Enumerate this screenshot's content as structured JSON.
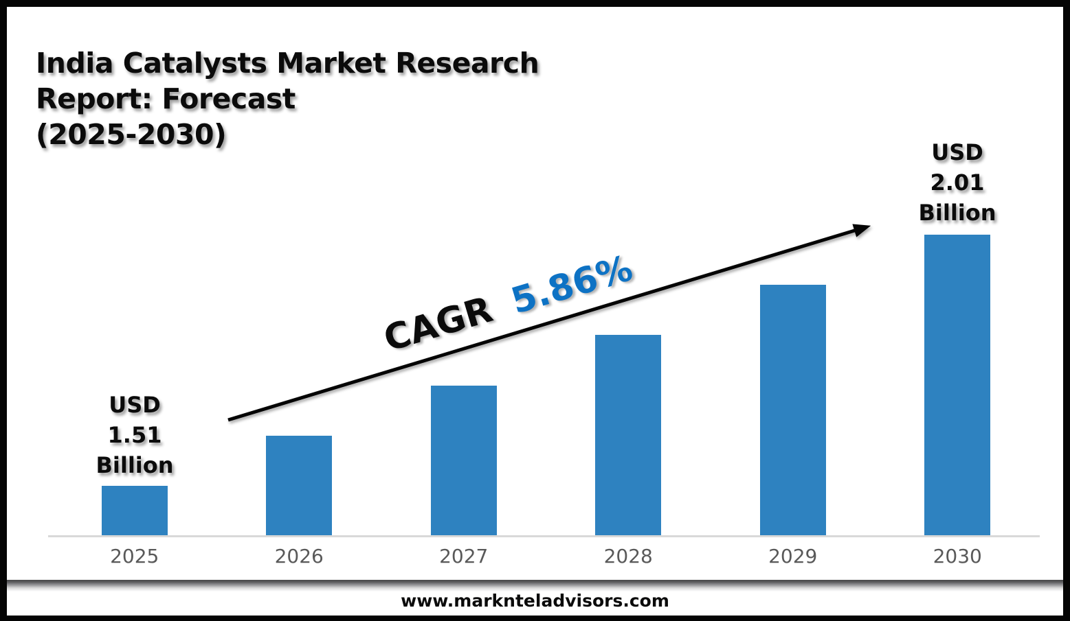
{
  "title": {
    "lines": [
      "India Catalysts Market Research",
      "Report: Forecast",
      "(2025-2030)"
    ]
  },
  "chart_data": {
    "type": "bar",
    "title": "India Catalysts Market Research Report: Forecast (2025-2030)",
    "categories": [
      "2025",
      "2026",
      "2027",
      "2028",
      "2029",
      "2030"
    ],
    "values": [
      1.51,
      1.61,
      1.71,
      1.81,
      1.91,
      2.01
    ],
    "unit": "USD Billion",
    "labeled_values": {
      "2025": "USD 1.51 Billion",
      "2030": "USD 2.01 Billion"
    },
    "cagr": {
      "label": "CAGR",
      "value": "5.86%"
    },
    "annotations": [
      {
        "category": "2025",
        "text": "USD\n1.51\nBillion"
      },
      {
        "category": "2030",
        "text": "USD\n2.01\nBillion"
      }
    ],
    "xlabel": "",
    "ylabel": "",
    "y_axis": {
      "min": 1.41,
      "max": 2.01,
      "visible": false
    },
    "grid": false,
    "legend": false,
    "trend_arrow": true
  },
  "footer": {
    "website": "www.marknteladvisors.com"
  },
  "colors": {
    "bar": "#2E82C0",
    "cagr_value": "#0D72C4",
    "cagr_label": "#0B0B0B",
    "year_label": "#595959",
    "axis_line": "#D9D9D9",
    "frame": "#050505",
    "background": "#FFFFFF"
  }
}
